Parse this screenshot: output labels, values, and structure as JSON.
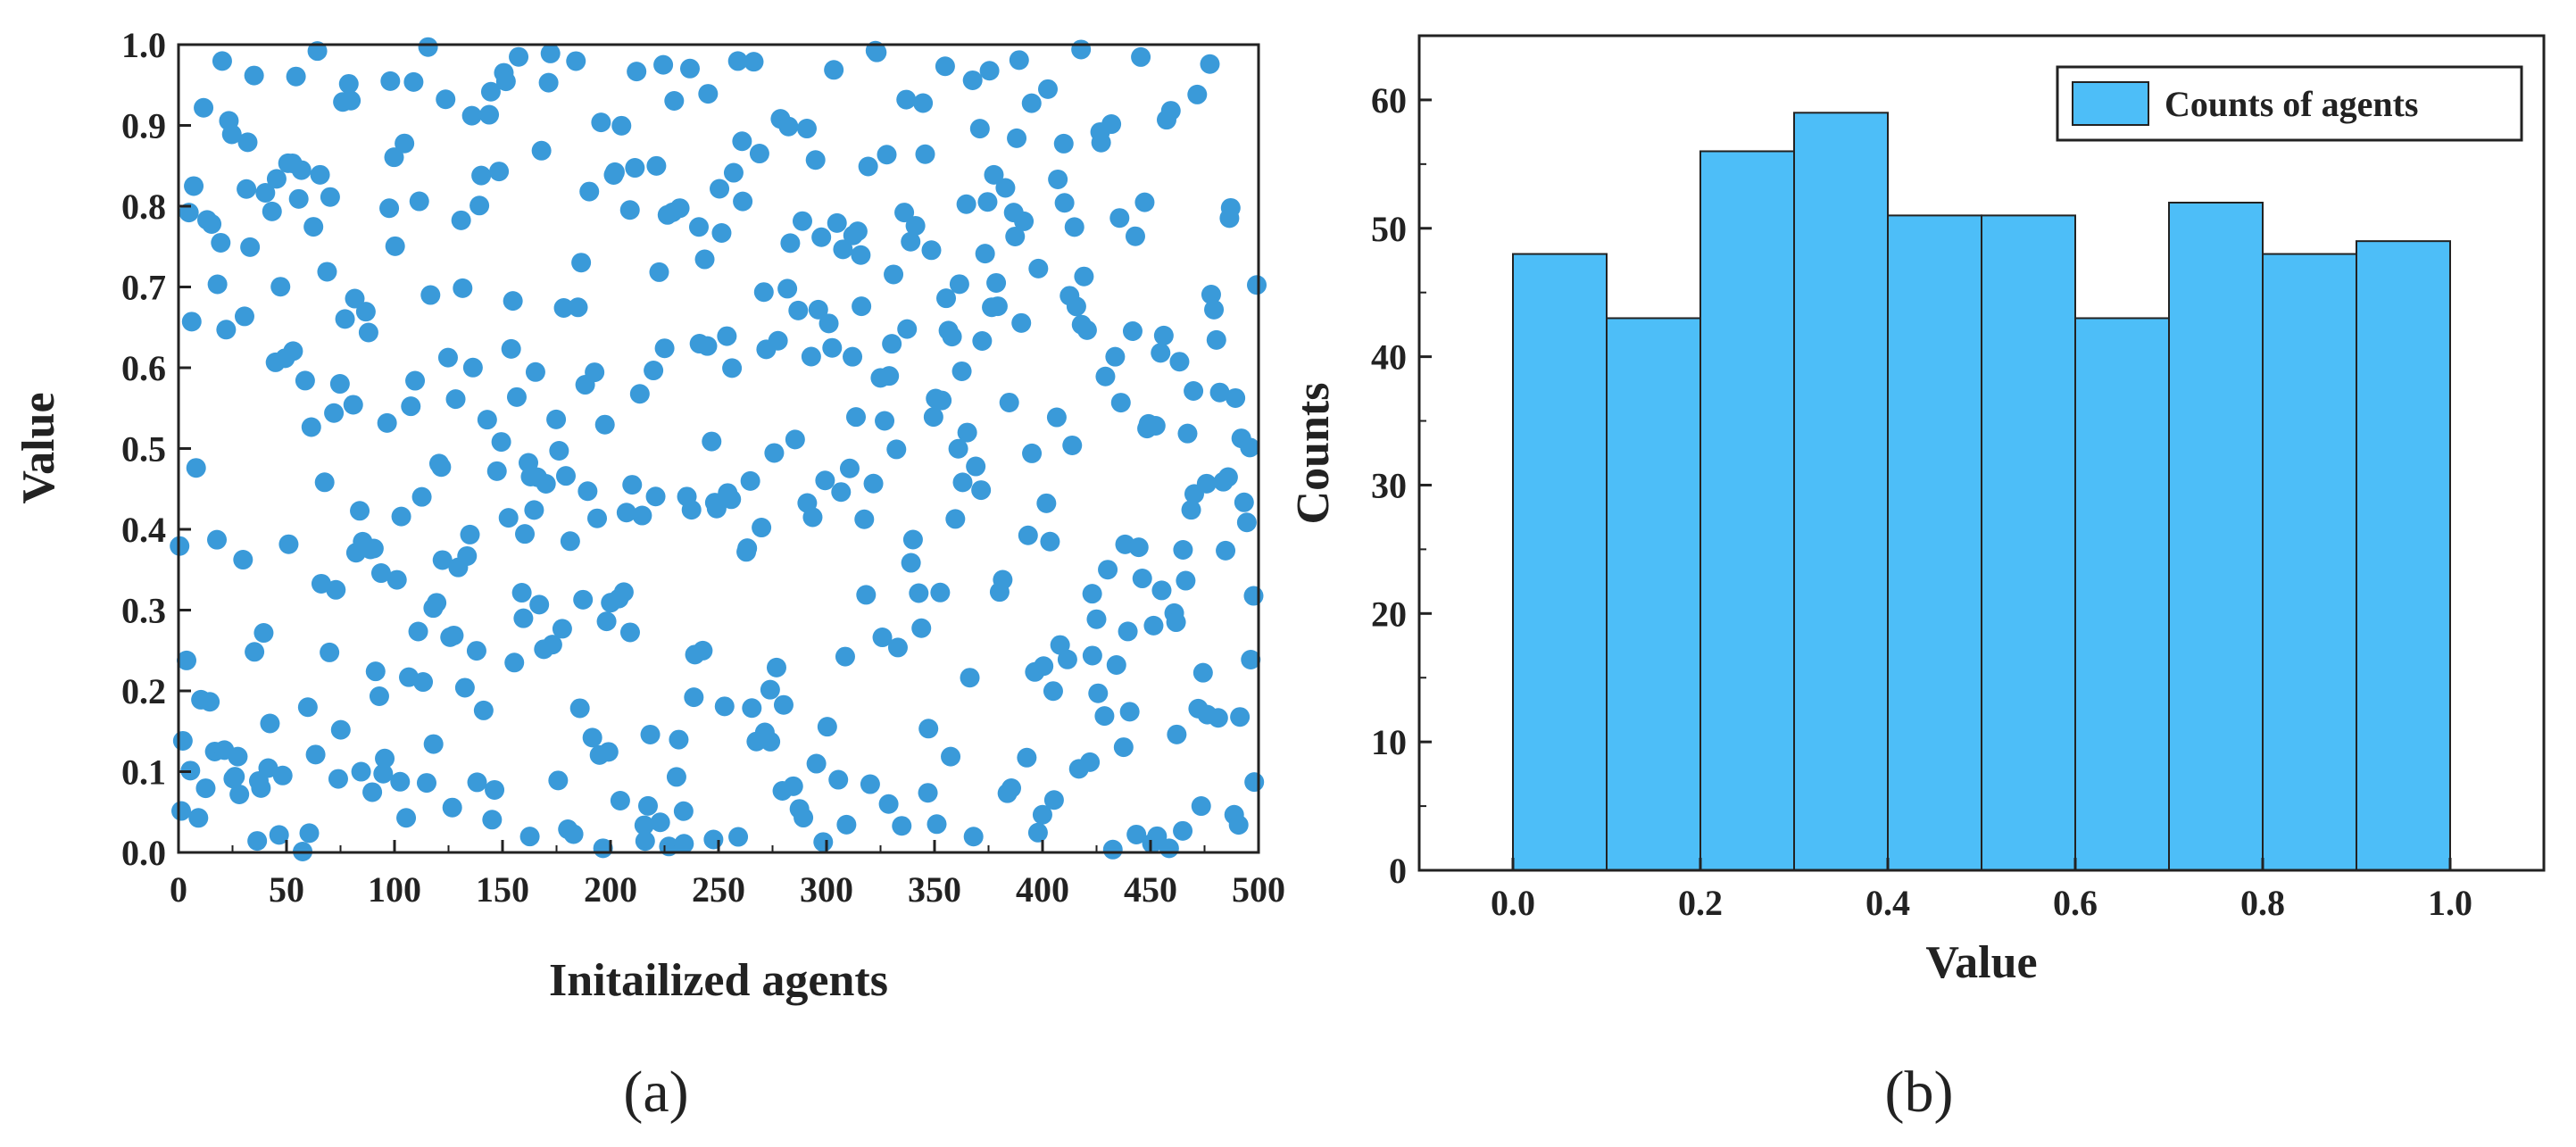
{
  "figure": {
    "panel_a_label": "(a)",
    "panel_b_label": "(b)"
  },
  "chart_data": [
    {
      "type": "scatter",
      "title": "",
      "xlabel": "Initailized agents",
      "ylabel": "Value",
      "xlim": [
        0,
        500
      ],
      "ylim": [
        0,
        1
      ],
      "xticks": [
        "0",
        "50",
        "100",
        "150",
        "200",
        "250",
        "300",
        "350",
        "400",
        "450",
        "500"
      ],
      "yticks": [
        "0.0",
        "0.1",
        "0.2",
        "0.3",
        "0.4",
        "0.5",
        "0.6",
        "0.7",
        "0.8",
        "0.9",
        "1.0"
      ],
      "grid": false,
      "point_color": "#3a9ad9",
      "point_count": 500,
      "distribution": "uniform random values in [0, 1], one per agent index 0..500"
    },
    {
      "type": "bar",
      "title": "",
      "xlabel": "Value",
      "ylabel": "Counts",
      "xlim": [
        -0.1,
        1.1
      ],
      "ylim": [
        0,
        65
      ],
      "bin_edges": [
        0.0,
        0.1,
        0.2,
        0.3,
        0.4,
        0.5,
        0.6,
        0.7,
        0.8,
        0.9,
        1.0
      ],
      "values": [
        48,
        43,
        56,
        59,
        51,
        51,
        43,
        52,
        48,
        49
      ],
      "xticks": [
        "0.0",
        "0.2",
        "0.4",
        "0.6",
        "0.8",
        "1.0"
      ],
      "yticks": [
        "0",
        "10",
        "20",
        "30",
        "40",
        "50",
        "60"
      ],
      "series": [
        {
          "name": "Counts of agents"
        }
      ],
      "legend_position": "top-right",
      "bar_color": "#4dbef8",
      "grid": false
    }
  ]
}
